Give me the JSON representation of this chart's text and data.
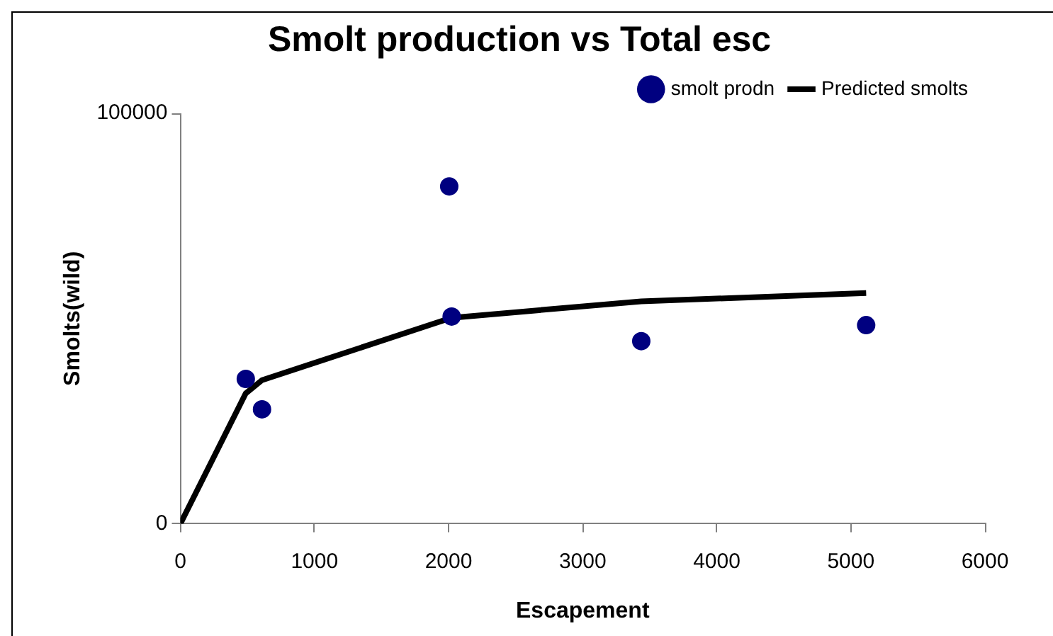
{
  "chart_data": {
    "type": "scatter",
    "title": "Smolt production vs Total esc",
    "xlabel": "Escapement",
    "ylabel": "Smolts(wild)",
    "xlim": [
      0,
      6000
    ],
    "xticks": [
      0,
      1000,
      2000,
      3000,
      4000,
      5000,
      6000
    ],
    "ylim": [
      0,
      100000
    ],
    "yticks": [
      0,
      100000
    ],
    "grid": false,
    "legend": "top right",
    "series": [
      {
        "name": "smolt prodn",
        "color": "#000080",
        "marker": "circle",
        "x": [
          488,
          609,
          2005,
          2023,
          3437,
          5114
        ],
        "values": [
          35300,
          27900,
          82200,
          50500,
          44500,
          48400
        ]
      },
      {
        "name": "Predicted smolts",
        "type": "line",
        "color": "#000000",
        "marker": "none",
        "line_style": "solid",
        "x": [
          0,
          488,
          609,
          2005,
          2023,
          3437,
          5114
        ],
        "values": [
          0,
          31800,
          35000,
          50000,
          50200,
          54200,
          56200
        ]
      }
    ]
  }
}
